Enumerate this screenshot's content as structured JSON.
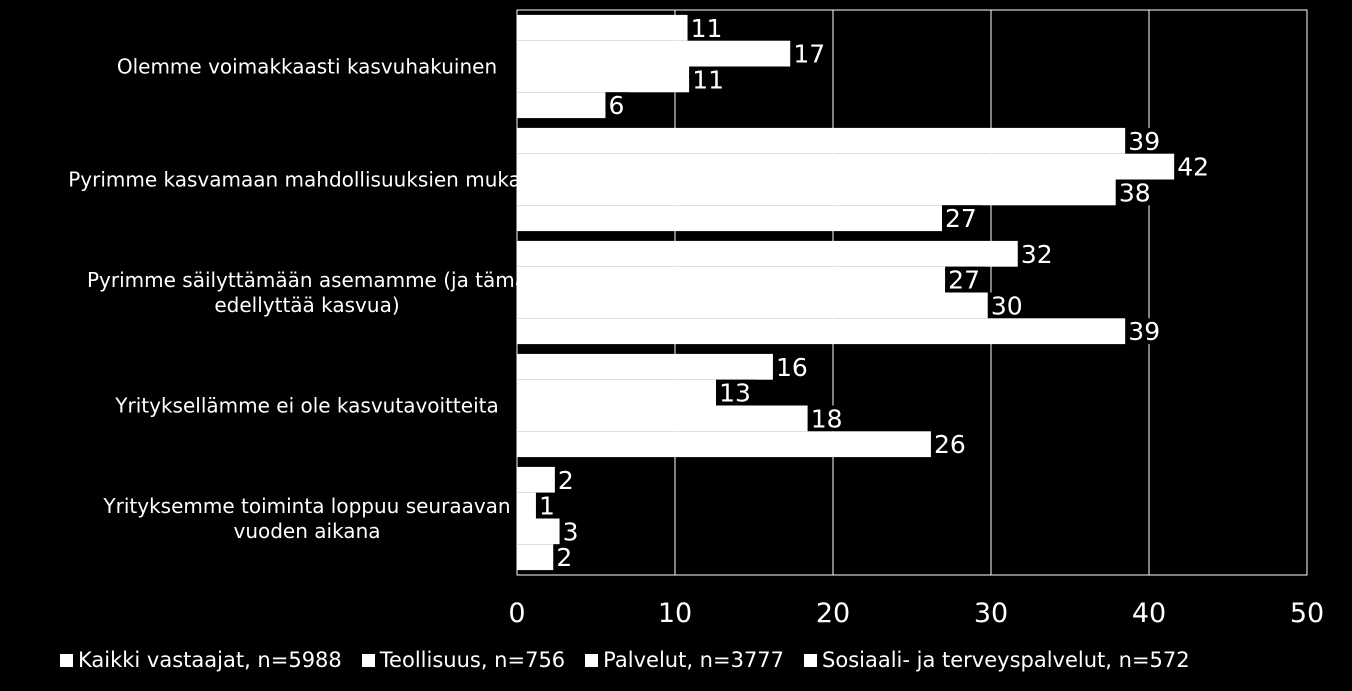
{
  "chart_data": {
    "type": "bar",
    "orientation": "horizontal",
    "categories": [
      "Olemme voimakkaasti kasvuhakuinen",
      "Pyrimme kasvamaan mahdollisuuksien mukaan",
      "Pyrimme säilyttämään asemamme (ja tämä edellyttää kasvua)",
      "Yrityksellämme ei ole kasvutavoitteita",
      "Yrityksemme toiminta loppuu seuraavan vuoden aikana"
    ],
    "category_lines": [
      [
        "Olemme voimakkaasti kasvuhakuinen"
      ],
      [
        "Pyrimme kasvamaan mahdollisuuksien mukaan"
      ],
      [
        "Pyrimme säilyttämään asemamme (ja tämä",
        "edellyttää kasvua)"
      ],
      [
        "Yrityksellämme ei ole kasvutavoitteita"
      ],
      [
        "Yrityksemme toiminta loppuu seuraavan",
        "vuoden aikana"
      ]
    ],
    "series": [
      {
        "name": "Kaikki vastaajat, n=5988",
        "values": [
          11,
          39,
          32,
          16,
          2
        ]
      },
      {
        "name": "Teollisuus, n=756",
        "values": [
          17,
          42,
          27,
          13,
          1
        ]
      },
      {
        "name": "Palvelut, n=3777",
        "values": [
          11,
          38,
          30,
          18,
          3
        ]
      },
      {
        "name": "Sosiaali- ja terveyspalvelut, n=572",
        "values": [
          6,
          27,
          39,
          26,
          2
        ]
      }
    ],
    "value_precision": [
      [
        10.8,
        38.5,
        31.7,
        16.2,
        2.4
      ],
      [
        17.3,
        41.6,
        27.1,
        12.6,
        1.2
      ],
      [
        10.9,
        37.9,
        29.8,
        18.4,
        2.7
      ],
      [
        5.6,
        26.9,
        38.5,
        26.2,
        2.3
      ]
    ],
    "xticks": [
      "0",
      "10",
      "20",
      "30",
      "40",
      "50"
    ],
    "xlim": [
      0,
      50
    ],
    "grid": true,
    "legend_position": "bottom",
    "colors": {
      "background": "#000000",
      "bar": "#ffffff",
      "grid": "#ffffff",
      "label_box": "#000000"
    }
  }
}
